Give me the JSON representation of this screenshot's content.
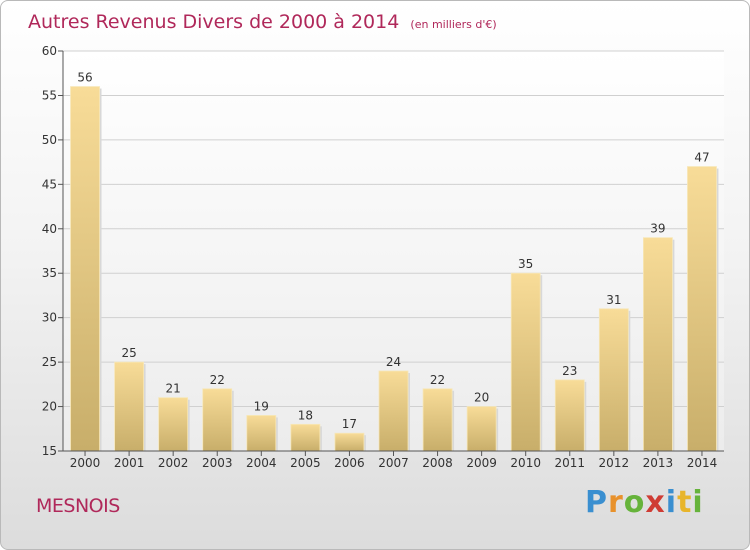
{
  "title": "Autres Revenus Divers de 2000 à 2014",
  "unit": "(en milliers d'€)",
  "place": "MESNOIS",
  "brand": [
    "P",
    "r",
    "o",
    "x",
    "i",
    "t",
    "i"
  ],
  "chart_data": {
    "type": "bar",
    "title": "Autres Revenus Divers de 2000 à 2014",
    "subtitle": "(en milliers d'€)",
    "xlabel": "",
    "ylabel": "",
    "categories": [
      "2000",
      "2001",
      "2002",
      "2003",
      "2004",
      "2005",
      "2006",
      "2007",
      "2008",
      "2009",
      "2010",
      "2011",
      "2012",
      "2013",
      "2014"
    ],
    "values": [
      56,
      25,
      21,
      22,
      19,
      18,
      17,
      24,
      22,
      20,
      35,
      23,
      31,
      39,
      47
    ],
    "ylim": [
      15,
      60
    ],
    "yticks": [
      15,
      20,
      25,
      30,
      35,
      40,
      45,
      50,
      55,
      60
    ],
    "grid": "horizontal",
    "bar_color": "#f3d993"
  }
}
